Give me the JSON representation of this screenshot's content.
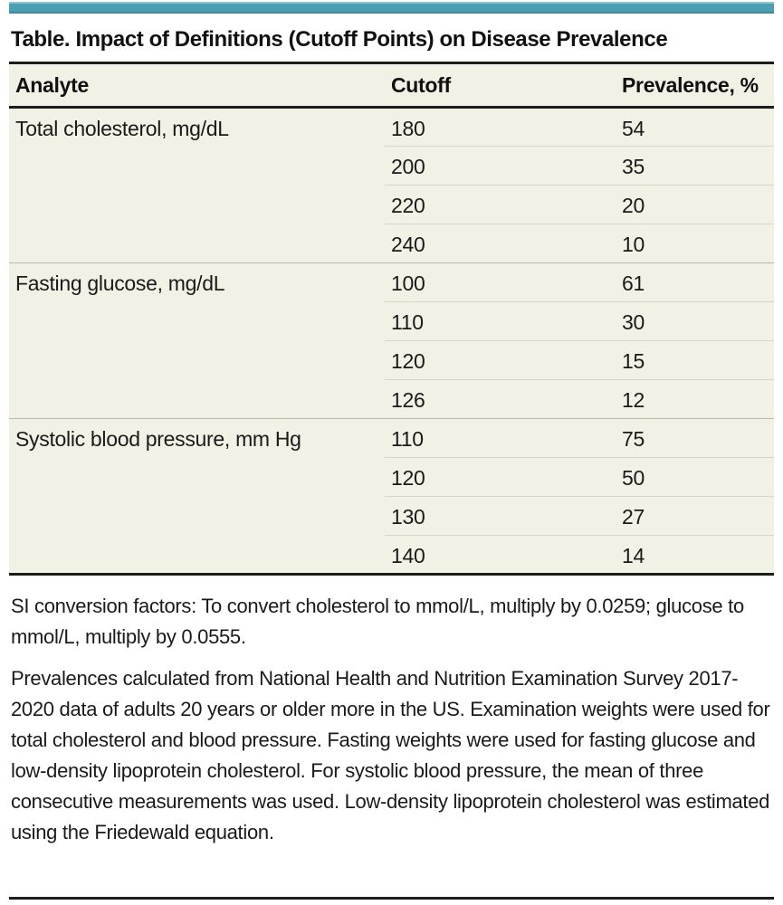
{
  "accent_color": "#4ba0b4",
  "table_background_color": "#f2f1e6",
  "rule_color": "#1c1c1c",
  "title": "Table. Impact of Definitions (Cutoff Points) on Disease Prevalence",
  "table": {
    "columns": [
      "Analyte",
      "Cutoff",
      "Prevalence, %"
    ],
    "sections": [
      {
        "analyte": "Total cholesterol, mg/dL",
        "rows": [
          {
            "cutoff": "180",
            "prevalence": "54"
          },
          {
            "cutoff": "200",
            "prevalence": "35"
          },
          {
            "cutoff": "220",
            "prevalence": "20"
          },
          {
            "cutoff": "240",
            "prevalence": "10"
          }
        ]
      },
      {
        "analyte": "Fasting glucose, mg/dL",
        "rows": [
          {
            "cutoff": "100",
            "prevalence": "61"
          },
          {
            "cutoff": "110",
            "prevalence": "30"
          },
          {
            "cutoff": "120",
            "prevalence": "15"
          },
          {
            "cutoff": "126",
            "prevalence": "12"
          }
        ]
      },
      {
        "analyte": "Systolic blood pressure, mm Hg",
        "rows": [
          {
            "cutoff": "110",
            "prevalence": "75"
          },
          {
            "cutoff": "120",
            "prevalence": "50"
          },
          {
            "cutoff": "130",
            "prevalence": "27"
          },
          {
            "cutoff": "140",
            "prevalence": "14"
          }
        ]
      }
    ]
  },
  "footnotes": [
    "SI conversion factors: To convert cholesterol to mmol/L, multiply by 0.0259; glucose to mmol/L, multiply by 0.0555.",
    "Prevalences calculated from National Health and Nutrition Examination Survey 2017-2020 data of adults 20 years or older more in the US. Examination weights were used for total cholesterol and blood pressure. Fasting weights were used for fasting glucose and low-density lipoprotein cholesterol. For systolic blood pressure, the mean of three consecutive measurements was used. Low-density lipoprotein cholesterol was estimated using the Friedewald equation."
  ]
}
